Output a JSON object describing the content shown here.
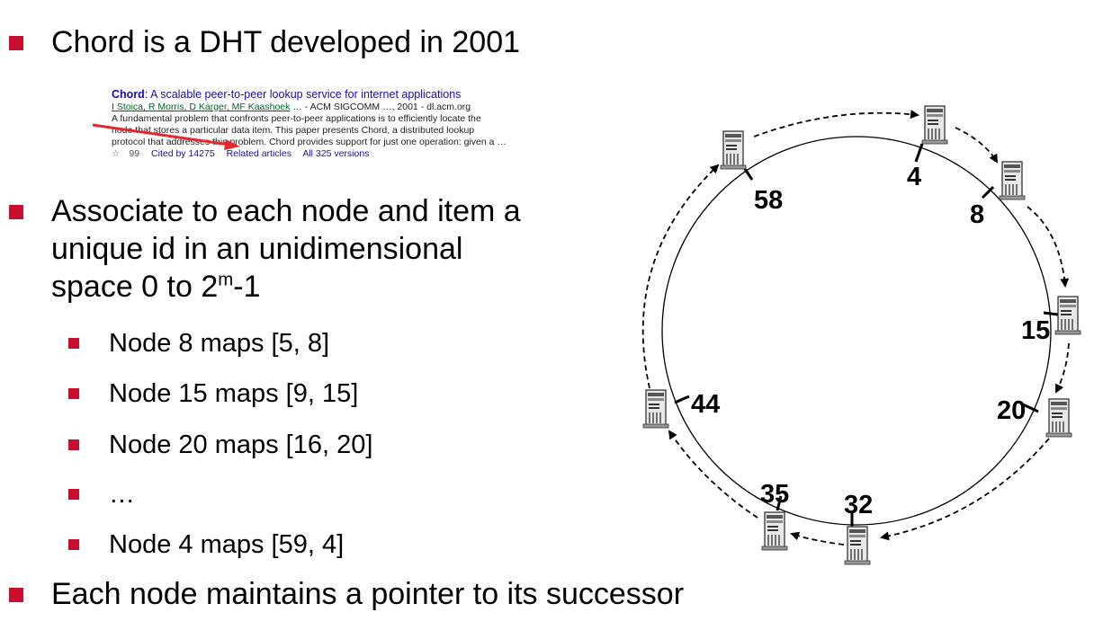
{
  "slide": {
    "bullets": [
      {
        "text": "Chord is a DHT developed in 2001"
      },
      {
        "line1": "Associate to each node and item a",
        "line2": "unique id in an unidimensional",
        "line3_pre": "space 0 to 2",
        "line3_sup": "m",
        "line3_post": "-1"
      },
      {
        "text": "Each node maintains a pointer to its successor"
      }
    ],
    "sub_bullets": [
      "Node 8 maps [5, 8]",
      "Node 15 maps [9, 15]",
      "Node 20 maps [16, 20]",
      "…",
      "Node 4 maps [59, 4]"
    ]
  },
  "citation": {
    "title_bold": "Chord",
    "title_rest": ": A scalable peer-to-peer lookup service for internet applications",
    "authors": "I Stoica, R Morris, D Karger, MF Kaashoek",
    "venue": "… - ACM SIGCOMM …, 2001 - dl.acm.org",
    "snippet_1": "A fundamental problem that confronts peer-to-peer applications is to efficiently locate the",
    "snippet_2": "node that stores a particular data item. This paper presents Chord, a distributed lookup",
    "snippet_3": "protocol that addresses this problem. Chord provides support for just one operation: given a …",
    "cited_by": "Cited by 14275",
    "related": "Related articles",
    "versions": "All 325 versions",
    "arrow_color": "#e8262d"
  },
  "ring": {
    "nodes": [
      {
        "id": "4"
      },
      {
        "id": "8"
      },
      {
        "id": "15"
      },
      {
        "id": "20"
      },
      {
        "id": "32"
      },
      {
        "id": "35"
      },
      {
        "id": "44"
      },
      {
        "id": "58"
      }
    ]
  }
}
